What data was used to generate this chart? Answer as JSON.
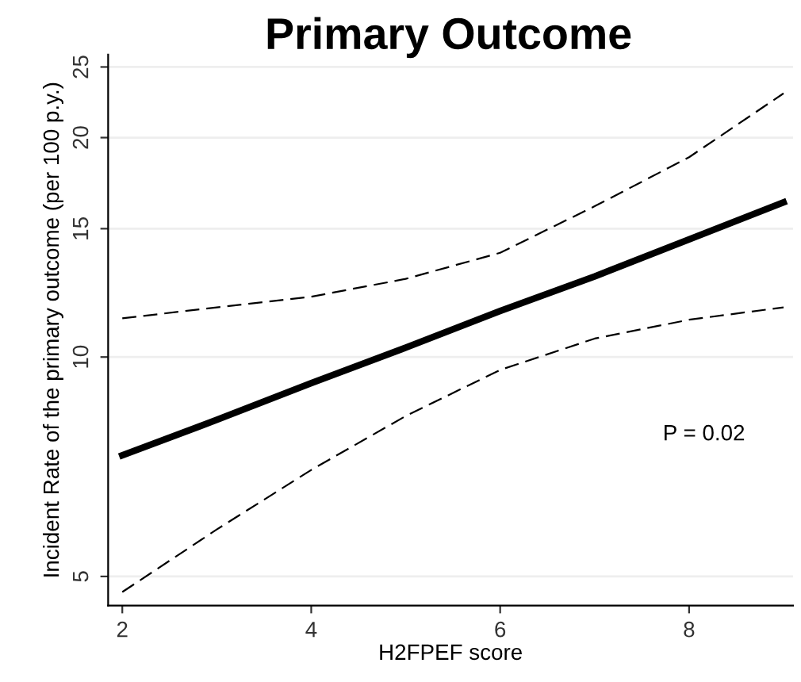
{
  "chart_data": {
    "type": "line",
    "title": "Primary Outcome",
    "xlabel": "H2FPEF score",
    "ylabel": "Incident Rate of the primary outcome (per 100 p.y.)",
    "annotations": [
      "P = 0.02"
    ],
    "x": [
      2,
      3,
      4,
      5,
      6,
      7,
      8,
      9
    ],
    "series": [
      {
        "color": "#000000",
        "values": [
          7.33,
          8.2,
          9.21,
          10.3,
          11.57,
          12.9,
          14.5,
          16.3
        ]
      },
      {
        "color": "#000000",
        "line_style": "dashed",
        "values": [
          4.76,
          5.8,
          7.0,
          8.3,
          9.6,
          10.6,
          11.25,
          11.7
        ]
      },
      {
        "color": "#000000",
        "line_style": "dashed",
        "values": [
          11.3,
          11.7,
          12.1,
          12.8,
          13.9,
          16.1,
          18.8,
          23.0
        ]
      }
    ],
    "log": true,
    "xlim": [
      1.85,
      9.1
    ],
    "ylim": [
      4.56,
      26
    ],
    "xticks": [
      2,
      4,
      6,
      8
    ],
    "yticks": [
      5,
      10,
      15,
      20,
      25
    ],
    "grid": "y",
    "line_style": "solid",
    "marker": "none"
  }
}
